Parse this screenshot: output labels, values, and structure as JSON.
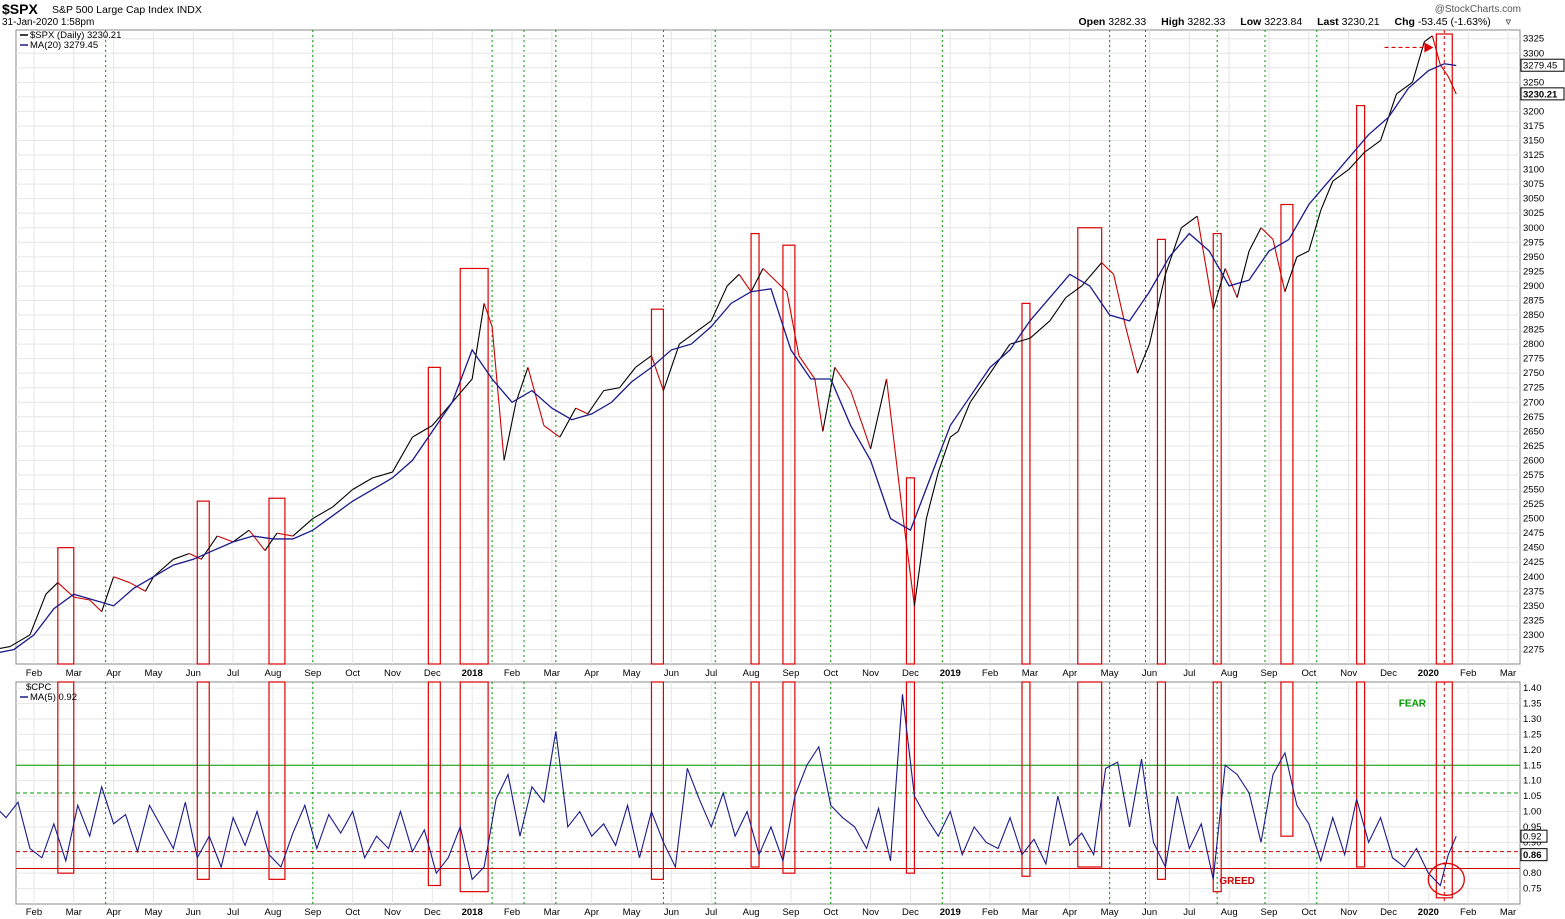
{
  "header": {
    "symbol": "$SPX",
    "name": "S&P 500 Large Cap Index",
    "exchange": "INDX",
    "date": "31-Jan-2020 1:58pm",
    "brand": "@StockCharts.com",
    "open_label": "Open",
    "open": "3282.33",
    "high_label": "High",
    "high": "3282.33",
    "low_label": "Low",
    "low": "3223.84",
    "last_label": "Last",
    "last": "3230.21",
    "chg_label": "Chg",
    "chg": "-53.45 (-1.63%)"
  },
  "colors": {
    "price_up": "#000000",
    "price_down": "#cc0000",
    "ma": "#1a1a8c",
    "box": "#dd0000",
    "green_line": "#009900",
    "red_line": "#cc0000",
    "grid": "#e6e6e6"
  },
  "chart_data": [
    {
      "type": "line",
      "panel": "price",
      "legend": [
        "$SPX (Daily) 3230.21",
        "MA(20) 3279.45"
      ],
      "ylim": [
        2250,
        3340
      ],
      "y_ticks": [
        2275,
        2300,
        2325,
        2350,
        2375,
        2400,
        2425,
        2450,
        2475,
        2500,
        2525,
        2550,
        2575,
        2600,
        2625,
        2650,
        2675,
        2700,
        2725,
        2750,
        2775,
        2800,
        2825,
        2850,
        2875,
        2900,
        2925,
        2950,
        2975,
        3000,
        3025,
        3050,
        3075,
        3100,
        3125,
        3150,
        3175,
        3200,
        3225,
        3250,
        3275,
        3300,
        3325
      ],
      "y_labels_marked": [
        {
          "value": 3279.45,
          "label": "3279.45"
        },
        {
          "value": 3230.21,
          "label": "3230.21"
        }
      ],
      "x_tick_labels": [
        "Feb",
        "Mar",
        "Apr",
        "May",
        "Jun",
        "Jul",
        "Aug",
        "Sep",
        "Oct",
        "Nov",
        "Dec",
        "2018",
        "Feb",
        "Mar",
        "Apr",
        "May",
        "Jun",
        "Jul",
        "Aug",
        "Sep",
        "Oct",
        "Nov",
        "Dec",
        "2019",
        "Feb",
        "Mar",
        "Apr",
        "May",
        "Jun",
        "Jul",
        "Aug",
        "Sep",
        "Oct",
        "Nov",
        "Dec",
        "2020",
        "Feb",
        "Mar"
      ],
      "x_tick_months": [
        1,
        2,
        3,
        4,
        5,
        6,
        7,
        8,
        9,
        10,
        11,
        12,
        13,
        14,
        15,
        16,
        17,
        18,
        19,
        20,
        21,
        22,
        23,
        24,
        25,
        26,
        27,
        28,
        29,
        30,
        31,
        32,
        33,
        34,
        35,
        36,
        37,
        38
      ],
      "x_bold_labels": [
        "2018",
        "2019",
        "2020"
      ],
      "series_price": {
        "name": "$SPX (Daily)",
        "x_month": [
          0,
          0.4,
          0.9,
          1.3,
          1.6,
          2.0,
          2.4,
          2.7,
          3.0,
          3.4,
          3.8,
          4.0,
          4.5,
          4.9,
          5.2,
          5.6,
          6.0,
          6.4,
          6.8,
          7.1,
          7.5,
          8.0,
          8.5,
          9.0,
          9.5,
          10.0,
          10.5,
          11.0,
          11.5,
          12.0,
          12.3,
          12.5,
          12.8,
          13.1,
          13.4,
          13.8,
          14.2,
          14.6,
          14.9,
          15.3,
          15.7,
          16.1,
          16.5,
          16.8,
          17.2,
          17.6,
          18.0,
          18.4,
          18.7,
          19.0,
          19.3,
          19.6,
          19.9,
          20.2,
          20.6,
          20.8,
          21.1,
          21.5,
          22.0,
          22.4,
          22.8,
          23.1,
          23.4,
          23.7,
          24.0,
          24.2,
          24.5,
          25.0,
          25.5,
          26.0,
          26.5,
          26.9,
          27.3,
          27.8,
          28.1,
          28.4,
          28.7,
          29.0,
          29.4,
          29.8,
          30.2,
          30.6,
          30.9,
          31.2,
          31.5,
          31.8,
          32.1,
          32.4,
          32.7,
          33.0,
          33.3,
          33.6,
          34.0,
          34.4,
          34.8,
          35.2,
          35.6,
          35.9,
          36.1,
          36.3,
          36.5,
          36.7
        ],
        "values": [
          2275,
          2280,
          2300,
          2370,
          2390,
          2365,
          2360,
          2340,
          2400,
          2390,
          2375,
          2400,
          2430,
          2440,
          2430,
          2470,
          2460,
          2480,
          2445,
          2475,
          2470,
          2500,
          2520,
          2550,
          2570,
          2580,
          2640,
          2660,
          2700,
          2740,
          2870,
          2830,
          2600,
          2700,
          2760,
          2660,
          2640,
          2690,
          2680,
          2720,
          2725,
          2760,
          2780,
          2720,
          2800,
          2820,
          2840,
          2900,
          2920,
          2890,
          2930,
          2910,
          2890,
          2780,
          2740,
          2650,
          2760,
          2720,
          2620,
          2740,
          2510,
          2350,
          2500,
          2580,
          2640,
          2650,
          2700,
          2750,
          2800,
          2810,
          2840,
          2880,
          2900,
          2940,
          2920,
          2830,
          2750,
          2800,
          2920,
          3000,
          3020,
          2860,
          2930,
          2880,
          2960,
          3000,
          2980,
          2890,
          2950,
          2960,
          3030,
          3080,
          3100,
          3130,
          3150,
          3230,
          3250,
          3320,
          3330,
          3280,
          3260,
          3230
        ]
      },
      "series_ma": {
        "name": "MA(20)",
        "x_month": [
          0,
          0.5,
          1.0,
          1.5,
          2.0,
          2.5,
          3.0,
          3.5,
          4.0,
          4.5,
          5.0,
          5.5,
          6.0,
          6.5,
          7.0,
          7.5,
          8.0,
          8.5,
          9.0,
          9.5,
          10.0,
          10.5,
          11.0,
          11.5,
          12.0,
          12.5,
          13.0,
          13.5,
          14.0,
          14.5,
          15.0,
          15.5,
          16.0,
          16.5,
          17.0,
          17.5,
          18.0,
          18.5,
          19.0,
          19.5,
          20.0,
          20.5,
          21.0,
          21.5,
          22.0,
          22.5,
          23.0,
          23.5,
          24.0,
          24.5,
          25.0,
          25.5,
          26.0,
          26.5,
          27.0,
          27.5,
          28.0,
          28.5,
          29.0,
          29.5,
          30.0,
          30.5,
          31.0,
          31.5,
          32.0,
          32.5,
          33.0,
          33.5,
          34.0,
          34.5,
          35.0,
          35.5,
          36.0,
          36.4,
          36.7
        ],
        "values": [
          2268,
          2275,
          2300,
          2345,
          2370,
          2360,
          2350,
          2380,
          2400,
          2420,
          2430,
          2445,
          2460,
          2470,
          2465,
          2465,
          2480,
          2505,
          2530,
          2550,
          2570,
          2600,
          2650,
          2700,
          2790,
          2740,
          2700,
          2720,
          2690,
          2670,
          2680,
          2700,
          2735,
          2760,
          2790,
          2800,
          2830,
          2870,
          2890,
          2895,
          2790,
          2740,
          2740,
          2660,
          2600,
          2500,
          2480,
          2570,
          2660,
          2710,
          2760,
          2790,
          2840,
          2880,
          2920,
          2900,
          2850,
          2840,
          2890,
          2950,
          2990,
          2960,
          2900,
          2910,
          2960,
          2980,
          3040,
          3080,
          3120,
          3160,
          3190,
          3240,
          3270,
          3282,
          3279
        ]
      }
    },
    {
      "type": "line",
      "panel": "indicator",
      "legend": [
        "$CPC",
        "MA(5) 0.92"
      ],
      "ylim": [
        0.7,
        1.42
      ],
      "y_ticks": [
        0.75,
        0.8,
        0.85,
        0.9,
        0.95,
        1.0,
        1.05,
        1.1,
        1.15,
        1.2,
        1.25,
        1.3,
        1.35,
        1.4
      ],
      "y_labels_marked": [
        {
          "value": 0.92,
          "label": "0.92"
        },
        {
          "value": 0.86,
          "label": "0.86"
        }
      ],
      "levels": [
        {
          "value": 1.15,
          "style": "solid",
          "color": "#009900"
        },
        {
          "value": 1.06,
          "style": "dashed",
          "color": "#009900"
        },
        {
          "value": 0.87,
          "style": "dashed",
          "color": "#cc0000"
        },
        {
          "value": 0.815,
          "style": "solid",
          "color": "#cc0000"
        }
      ],
      "annotations": [
        {
          "text": "FEAR",
          "x_month": 35.6,
          "y": 1.34,
          "color": "#009900"
        },
        {
          "text": "GREED",
          "x_month": 31.2,
          "y": 0.765,
          "color": "#cc0000"
        }
      ],
      "series_ma": {
        "name": "MA(5)",
        "x_month": [
          0,
          0.3,
          0.6,
          0.9,
          1.2,
          1.5,
          1.8,
          2.1,
          2.4,
          2.7,
          3.0,
          3.3,
          3.6,
          3.9,
          4.2,
          4.5,
          4.8,
          5.1,
          5.4,
          5.7,
          6.0,
          6.3,
          6.6,
          6.9,
          7.2,
          7.5,
          7.8,
          8.1,
          8.4,
          8.7,
          9.0,
          9.3,
          9.6,
          9.9,
          10.2,
          10.5,
          10.8,
          11.1,
          11.4,
          11.7,
          12.0,
          12.3,
          12.6,
          12.9,
          13.2,
          13.5,
          13.8,
          14.1,
          14.4,
          14.7,
          15.0,
          15.3,
          15.6,
          15.9,
          16.2,
          16.5,
          16.8,
          17.1,
          17.4,
          17.7,
          18.0,
          18.3,
          18.6,
          18.9,
          19.2,
          19.5,
          19.8,
          20.1,
          20.4,
          20.7,
          21.0,
          21.3,
          21.6,
          21.9,
          22.2,
          22.5,
          22.8,
          23.1,
          23.4,
          23.7,
          24.0,
          24.3,
          24.6,
          24.9,
          25.2,
          25.5,
          25.8,
          26.1,
          26.4,
          26.7,
          27.0,
          27.3,
          27.6,
          27.9,
          28.2,
          28.5,
          28.8,
          29.1,
          29.4,
          29.7,
          30.0,
          30.3,
          30.6,
          30.9,
          31.2,
          31.5,
          31.8,
          32.1,
          32.4,
          32.7,
          33.0,
          33.3,
          33.6,
          33.9,
          34.2,
          34.5,
          34.8,
          35.1,
          35.4,
          35.7,
          36.0,
          36.3,
          36.5,
          36.7
        ],
        "values": [
          1.02,
          0.98,
          1.03,
          0.88,
          0.85,
          0.96,
          0.84,
          1.02,
          0.92,
          1.08,
          0.96,
          0.99,
          0.87,
          1.02,
          0.95,
          0.88,
          1.03,
          0.85,
          0.92,
          0.82,
          0.98,
          0.89,
          1.0,
          0.86,
          0.82,
          0.93,
          1.02,
          0.88,
          0.99,
          0.93,
          1.0,
          0.85,
          0.92,
          0.88,
          1.0,
          0.87,
          0.94,
          0.8,
          0.85,
          0.95,
          0.78,
          0.82,
          1.04,
          1.12,
          0.92,
          1.08,
          1.03,
          1.26,
          0.95,
          1.0,
          0.92,
          0.96,
          0.89,
          1.02,
          0.85,
          1.0,
          0.9,
          0.82,
          1.14,
          1.04,
          0.95,
          1.06,
          0.92,
          1.0,
          0.86,
          0.95,
          0.84,
          1.05,
          1.15,
          1.21,
          1.02,
          0.98,
          0.95,
          0.88,
          1.01,
          0.84,
          1.38,
          1.05,
          0.98,
          0.92,
          1.0,
          0.86,
          0.95,
          0.9,
          0.88,
          0.98,
          0.86,
          0.91,
          0.83,
          1.05,
          0.89,
          0.93,
          0.86,
          1.14,
          1.16,
          0.95,
          1.17,
          0.9,
          0.82,
          1.05,
          0.88,
          0.96,
          0.78,
          1.15,
          1.12,
          1.06,
          0.9,
          1.12,
          1.19,
          1.02,
          0.96,
          0.84,
          0.98,
          0.86,
          1.04,
          0.9,
          0.98,
          0.85,
          0.82,
          0.88,
          0.8,
          0.76,
          0.86,
          0.92
        ]
      }
    }
  ],
  "highlights": [
    {
      "from_month": 1.6,
      "to_month": 2.0
    },
    {
      "from_month": 5.1,
      "to_month": 5.4
    },
    {
      "from_month": 6.9,
      "to_month": 7.3
    },
    {
      "from_month": 10.9,
      "to_month": 11.2
    },
    {
      "from_month": 11.7,
      "to_month": 12.4
    },
    {
      "from_month": 16.5,
      "to_month": 16.8
    },
    {
      "from_month": 19.0,
      "to_month": 19.2
    },
    {
      "from_month": 19.8,
      "to_month": 20.1
    },
    {
      "from_month": 22.9,
      "to_month": 23.1
    },
    {
      "from_month": 25.8,
      "to_month": 26.0
    },
    {
      "from_month": 27.2,
      "to_month": 27.8
    },
    {
      "from_month": 29.2,
      "to_month": 29.4
    },
    {
      "from_month": 30.6,
      "to_month": 30.8
    },
    {
      "from_month": 32.3,
      "to_month": 32.6
    },
    {
      "from_month": 34.2,
      "to_month": 34.4
    },
    {
      "from_month": 36.2,
      "to_month": 36.6
    }
  ],
  "green_vlines_month": [
    2.8,
    8.0,
    12.5,
    13.3,
    14.1,
    16.8,
    18.1,
    21.0,
    23.8,
    28.0,
    28.9,
    30.7,
    31.9,
    33.2
  ],
  "price_arrow": {
    "from_month": 34.9,
    "to_month": 35.9,
    "value": 3310
  },
  "dashed_marker_month": 36.4
}
